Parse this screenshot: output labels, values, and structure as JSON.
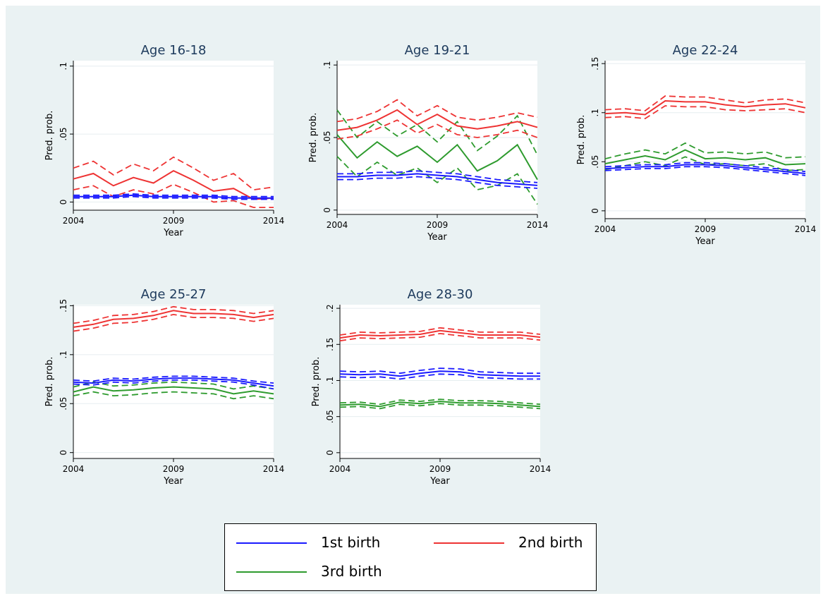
{
  "chart_data": [
    {
      "type": "line",
      "title": "Age 16-18",
      "xlabel": "Year",
      "ylabel": "Pred. prob.",
      "xticks": [
        "2004",
        "2009",
        "2014"
      ],
      "yticks": [
        {
          "v": 0,
          "label": "0"
        },
        {
          "v": 0.05,
          "label": ".05"
        },
        {
          "v": 0.1,
          "label": ".1"
        }
      ],
      "xlim": [
        2004,
        2014
      ],
      "ylim": [
        -0.006,
        0.104
      ],
      "x": [
        2004,
        2005,
        2006,
        2007,
        2008,
        2009,
        2010,
        2011,
        2012,
        2013,
        2014
      ],
      "series": [
        {
          "name": "1st birth",
          "values": [
            0.004,
            0.004,
            0.004,
            0.005,
            0.004,
            0.004,
            0.004,
            0.004,
            0.003,
            0.003,
            0.003
          ],
          "lower": [
            0.003,
            0.003,
            0.003,
            0.004,
            0.003,
            0.003,
            0.003,
            0.003,
            0.002,
            0.002,
            0.002
          ],
          "upper": [
            0.005,
            0.005,
            0.005,
            0.006,
            0.005,
            0.005,
            0.005,
            0.005,
            0.004,
            0.004,
            0.004
          ]
        },
        {
          "name": "2nd birth",
          "values": [
            0.017,
            0.021,
            0.012,
            0.018,
            0.014,
            0.023,
            0.016,
            0.008,
            0.01,
            0.002,
            0.003
          ],
          "lower": [
            0.009,
            0.012,
            0.004,
            0.009,
            0.006,
            0.013,
            0.007,
            0.0,
            0.001,
            -0.004,
            -0.004
          ],
          "upper": [
            0.025,
            0.03,
            0.02,
            0.028,
            0.023,
            0.033,
            0.025,
            0.016,
            0.021,
            0.009,
            0.011
          ]
        }
      ]
    },
    {
      "type": "line",
      "title": "Age 19-21",
      "xlabel": "Year",
      "ylabel": "Pred. prob.",
      "xticks": [
        "2004",
        "2009",
        "2014"
      ],
      "yticks": [
        {
          "v": 0,
          "label": "0"
        },
        {
          "v": 0.05,
          "label": ".05"
        },
        {
          "v": 0.1,
          "label": ".1"
        }
      ],
      "xlim": [
        2004,
        2014
      ],
      "ylim": [
        -0.003,
        0.103
      ],
      "x": [
        2004,
        2005,
        2006,
        2007,
        2008,
        2009,
        2010,
        2011,
        2012,
        2013,
        2014
      ],
      "series": [
        {
          "name": "1st birth",
          "values": [
            0.023,
            0.023,
            0.024,
            0.024,
            0.025,
            0.024,
            0.023,
            0.021,
            0.019,
            0.018,
            0.017
          ],
          "lower": [
            0.021,
            0.021,
            0.022,
            0.022,
            0.023,
            0.022,
            0.021,
            0.019,
            0.017,
            0.016,
            0.015
          ],
          "upper": [
            0.025,
            0.025,
            0.026,
            0.026,
            0.027,
            0.026,
            0.025,
            0.023,
            0.021,
            0.02,
            0.019
          ]
        },
        {
          "name": "2nd birth",
          "values": [
            0.055,
            0.057,
            0.062,
            0.069,
            0.059,
            0.066,
            0.058,
            0.056,
            0.058,
            0.061,
            0.057
          ],
          "lower": [
            0.049,
            0.051,
            0.056,
            0.062,
            0.053,
            0.059,
            0.052,
            0.05,
            0.052,
            0.055,
            0.05
          ],
          "upper": [
            0.061,
            0.063,
            0.068,
            0.076,
            0.065,
            0.072,
            0.064,
            0.062,
            0.064,
            0.067,
            0.064
          ]
        },
        {
          "name": "3rd birth",
          "values": [
            0.052,
            0.036,
            0.047,
            0.037,
            0.044,
            0.033,
            0.045,
            0.027,
            0.034,
            0.045,
            0.021
          ],
          "lower": [
            0.037,
            0.023,
            0.033,
            0.024,
            0.029,
            0.019,
            0.029,
            0.014,
            0.017,
            0.025,
            0.004
          ],
          "upper": [
            0.069,
            0.05,
            0.061,
            0.051,
            0.059,
            0.047,
            0.061,
            0.041,
            0.051,
            0.065,
            0.038
          ]
        }
      ]
    },
    {
      "type": "line",
      "title": "Age 22-24",
      "xlabel": "Year",
      "ylabel": "Pred. prob.",
      "xticks": [
        "2004",
        "2009",
        "2014"
      ],
      "yticks": [
        {
          "v": 0,
          "label": "0"
        },
        {
          "v": 0.05,
          "label": ".05"
        },
        {
          "v": 0.1,
          "label": ".1"
        },
        {
          "v": 0.15,
          "label": ".15"
        }
      ],
      "xlim": [
        2004,
        2014
      ],
      "ylim": [
        -0.008,
        0.153
      ],
      "x": [
        2004,
        2005,
        2006,
        2007,
        2008,
        2009,
        2010,
        2011,
        2012,
        2013,
        2014
      ],
      "series": [
        {
          "name": "1st birth",
          "values": [
            0.043,
            0.044,
            0.045,
            0.045,
            0.047,
            0.047,
            0.046,
            0.044,
            0.042,
            0.04,
            0.038
          ],
          "lower": [
            0.041,
            0.042,
            0.043,
            0.043,
            0.045,
            0.045,
            0.044,
            0.042,
            0.04,
            0.038,
            0.036
          ],
          "upper": [
            0.045,
            0.046,
            0.047,
            0.047,
            0.049,
            0.049,
            0.048,
            0.046,
            0.044,
            0.042,
            0.04
          ]
        },
        {
          "name": "2nd birth",
          "values": [
            0.099,
            0.1,
            0.098,
            0.112,
            0.111,
            0.111,
            0.108,
            0.106,
            0.108,
            0.109,
            0.105
          ],
          "lower": [
            0.095,
            0.096,
            0.094,
            0.107,
            0.106,
            0.106,
            0.103,
            0.102,
            0.103,
            0.104,
            0.1
          ],
          "upper": [
            0.103,
            0.104,
            0.102,
            0.117,
            0.116,
            0.116,
            0.113,
            0.11,
            0.113,
            0.114,
            0.11
          ]
        },
        {
          "name": "3rd birth",
          "values": [
            0.048,
            0.052,
            0.056,
            0.052,
            0.062,
            0.053,
            0.054,
            0.052,
            0.054,
            0.047,
            0.048
          ],
          "lower": [
            0.042,
            0.046,
            0.05,
            0.046,
            0.055,
            0.047,
            0.048,
            0.046,
            0.048,
            0.041,
            0.042
          ],
          "upper": [
            0.053,
            0.058,
            0.062,
            0.058,
            0.069,
            0.059,
            0.06,
            0.058,
            0.06,
            0.054,
            0.055
          ]
        }
      ]
    },
    {
      "type": "line",
      "title": "Age 25-27",
      "xlabel": "Year",
      "ylabel": "Pred. prob.",
      "xticks": [
        "2004",
        "2009",
        "2014"
      ],
      "yticks": [
        {
          "v": 0,
          "label": "0"
        },
        {
          "v": 0.05,
          "label": ".05"
        },
        {
          "v": 0.1,
          "label": ".1"
        },
        {
          "v": 0.15,
          "label": ".15"
        }
      ],
      "xlim": [
        2004,
        2014
      ],
      "ylim": [
        -0.006,
        0.151
      ],
      "x": [
        2004,
        2005,
        2006,
        2007,
        2008,
        2009,
        2010,
        2011,
        2012,
        2013,
        2014
      ],
      "series": [
        {
          "name": "1st birth",
          "values": [
            0.072,
            0.071,
            0.074,
            0.073,
            0.075,
            0.076,
            0.076,
            0.075,
            0.074,
            0.071,
            0.068
          ],
          "lower": [
            0.07,
            0.069,
            0.072,
            0.071,
            0.073,
            0.074,
            0.074,
            0.073,
            0.072,
            0.069,
            0.065
          ],
          "upper": [
            0.074,
            0.073,
            0.076,
            0.075,
            0.077,
            0.078,
            0.078,
            0.077,
            0.076,
            0.073,
            0.071
          ]
        },
        {
          "name": "2nd birth",
          "values": [
            0.128,
            0.131,
            0.136,
            0.137,
            0.14,
            0.145,
            0.142,
            0.142,
            0.141,
            0.138,
            0.141
          ],
          "lower": [
            0.124,
            0.127,
            0.132,
            0.133,
            0.136,
            0.141,
            0.138,
            0.138,
            0.137,
            0.134,
            0.137
          ],
          "upper": [
            0.132,
            0.135,
            0.14,
            0.141,
            0.144,
            0.149,
            0.146,
            0.146,
            0.145,
            0.142,
            0.145
          ]
        },
        {
          "name": "3rd birth",
          "values": [
            0.062,
            0.067,
            0.063,
            0.064,
            0.066,
            0.067,
            0.066,
            0.065,
            0.06,
            0.063,
            0.06
          ],
          "lower": [
            0.058,
            0.062,
            0.058,
            0.059,
            0.061,
            0.062,
            0.061,
            0.06,
            0.055,
            0.058,
            0.055
          ],
          "upper": [
            0.067,
            0.072,
            0.068,
            0.069,
            0.071,
            0.072,
            0.071,
            0.07,
            0.065,
            0.068,
            0.065
          ]
        }
      ]
    },
    {
      "type": "line",
      "title": "Age 28-30",
      "xlabel": "Year",
      "ylabel": "Pred. prob.",
      "xticks": [
        "2004",
        "2009",
        "2014"
      ],
      "yticks": [
        {
          "v": 0,
          "label": "0"
        },
        {
          "v": 0.05,
          "label": ".05"
        },
        {
          "v": 0.1,
          "label": ".1"
        },
        {
          "v": 0.15,
          "label": ".15"
        },
        {
          "v": 0.2,
          "label": ".2"
        }
      ],
      "xlim": [
        2004,
        2014
      ],
      "ylim": [
        -0.008,
        0.205
      ],
      "x": [
        2004,
        2005,
        2006,
        2007,
        2008,
        2009,
        2010,
        2011,
        2012,
        2013,
        2014
      ],
      "series": [
        {
          "name": "1st birth",
          "values": [
            0.109,
            0.108,
            0.109,
            0.106,
            0.11,
            0.113,
            0.112,
            0.108,
            0.107,
            0.106,
            0.106
          ],
          "lower": [
            0.105,
            0.104,
            0.105,
            0.102,
            0.106,
            0.109,
            0.108,
            0.104,
            0.103,
            0.102,
            0.102
          ],
          "upper": [
            0.113,
            0.112,
            0.113,
            0.11,
            0.114,
            0.117,
            0.116,
            0.112,
            0.111,
            0.11,
            0.11
          ]
        },
        {
          "name": "2nd birth",
          "values": [
            0.159,
            0.163,
            0.162,
            0.163,
            0.164,
            0.169,
            0.166,
            0.163,
            0.163,
            0.163,
            0.16
          ],
          "lower": [
            0.155,
            0.159,
            0.158,
            0.159,
            0.16,
            0.165,
            0.162,
            0.159,
            0.159,
            0.159,
            0.156
          ],
          "upper": [
            0.163,
            0.167,
            0.166,
            0.167,
            0.168,
            0.173,
            0.17,
            0.167,
            0.167,
            0.167,
            0.164
          ]
        },
        {
          "name": "3rd birth",
          "values": [
            0.066,
            0.067,
            0.064,
            0.07,
            0.068,
            0.071,
            0.069,
            0.069,
            0.068,
            0.066,
            0.064
          ],
          "lower": [
            0.063,
            0.064,
            0.061,
            0.067,
            0.065,
            0.068,
            0.066,
            0.066,
            0.065,
            0.063,
            0.061
          ],
          "upper": [
            0.069,
            0.07,
            0.067,
            0.073,
            0.071,
            0.074,
            0.072,
            0.072,
            0.071,
            0.069,
            0.067
          ]
        }
      ]
    }
  ],
  "legend": {
    "placement": "bottom",
    "items": [
      {
        "label": "1st birth",
        "color": "#1a1aff"
      },
      {
        "label": "2nd birth",
        "color": "#ee3333"
      },
      {
        "label": "3rd birth",
        "color": "#2e9b2e"
      }
    ]
  },
  "colors": {
    "1st birth": "#1a1aff",
    "2nd birth": "#ee3333",
    "3rd birth": "#2e9b2e",
    "figure_background": "#eaf2f3",
    "plot_background": "#ffffff",
    "gridline": "#e6eef0"
  }
}
